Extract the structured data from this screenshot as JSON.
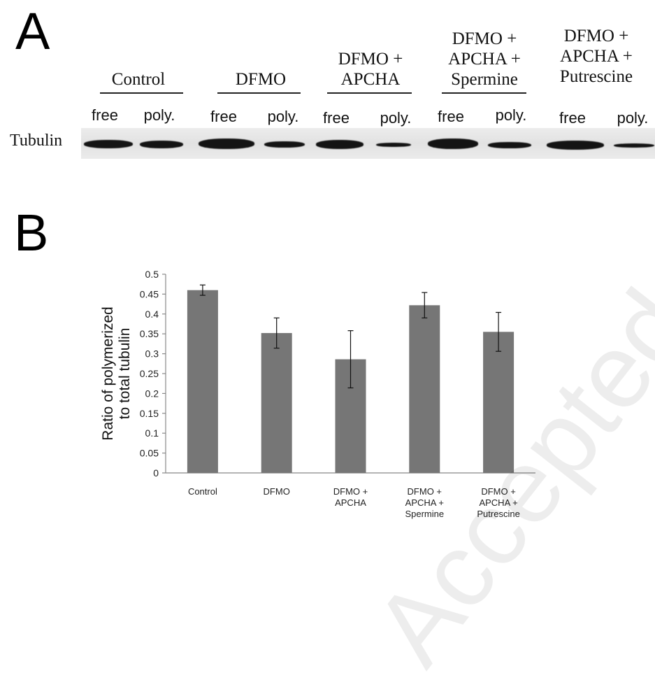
{
  "panel_a": {
    "letter": "A",
    "row_label": "Tubulin",
    "groups": [
      {
        "lines": [
          "Control"
        ]
      },
      {
        "lines": [
          "DFMO"
        ]
      },
      {
        "lines": [
          "DFMO +",
          "APCHA"
        ]
      },
      {
        "lines": [
          "DFMO +",
          "APCHA +",
          "Spermine"
        ]
      },
      {
        "lines": [
          "DFMO +",
          "APCHA +",
          "Putrescine"
        ]
      }
    ],
    "lanes": [
      "free",
      "poly.",
      "free",
      "poly.",
      "free",
      "poly.",
      "free",
      "poly.",
      "free",
      "poly."
    ]
  },
  "panel_b": {
    "letter": "B"
  },
  "chart_data": {
    "type": "bar",
    "title": "",
    "xlabel": "",
    "ylabel": "Ratio of polymerized to total tubulin",
    "ylabel_lines": [
      "Ratio of polymerized",
      "to total tubulin"
    ],
    "categories": [
      [
        "Control"
      ],
      [
        "DFMO"
      ],
      [
        "DFMO +",
        "APCHA"
      ],
      [
        "DFMO +",
        "APCHA +",
        "Spermine"
      ],
      [
        "DFMO +",
        "APCHA +",
        "Putrescine"
      ]
    ],
    "values": [
      0.46,
      0.352,
      0.286,
      0.422,
      0.355
    ],
    "errors": [
      0.013,
      0.038,
      0.072,
      0.032,
      0.049
    ],
    "ylim": [
      0,
      0.5
    ],
    "yticks": [
      "0",
      "0.05",
      "0.1",
      "0.15",
      "0.2",
      "0.25",
      "0.3",
      "0.35",
      "0.4",
      "0.45",
      "0.5"
    ],
    "grid": false,
    "bar_color": "#767676"
  },
  "watermark_text": "Accepted Manuscript"
}
